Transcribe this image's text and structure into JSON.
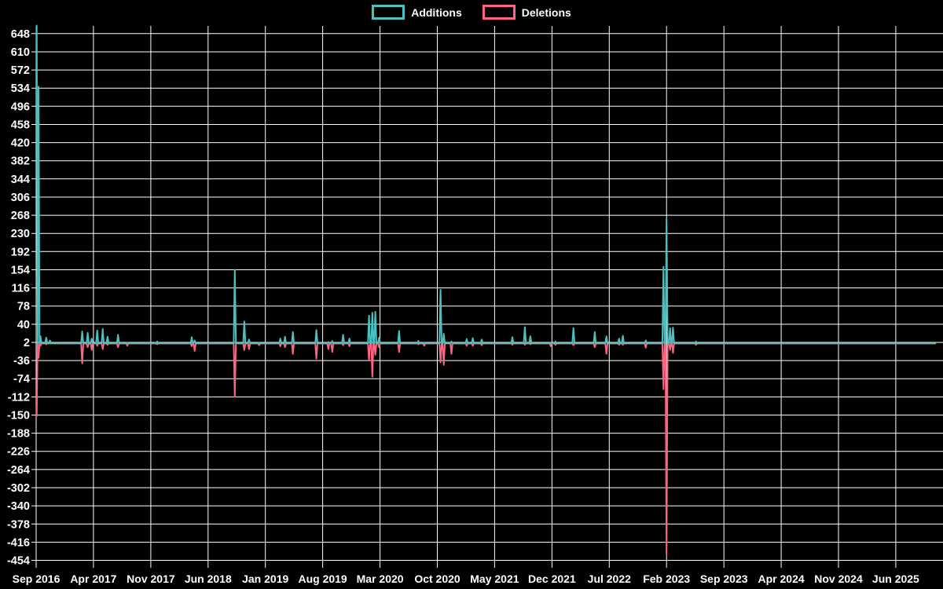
{
  "legend": {
    "additions_label": "Additions",
    "deletions_label": "Deletions"
  },
  "colors": {
    "background": "#000000",
    "grid": "#ffffff",
    "text": "#ffffff",
    "additions": "#4bc0c0",
    "deletions": "#ff6384"
  },
  "chart_data": {
    "type": "line",
    "title": "",
    "xlabel": "",
    "ylabel": "",
    "grid": true,
    "legend_position": "top",
    "x_start": "2016-09-01",
    "x_end": "2025-10-26",
    "x_tick_labels": [
      "Sep 2016",
      "Apr 2017",
      "Nov 2017",
      "Jun 2018",
      "Jan 2019",
      "Aug 2019",
      "Mar 2020",
      "Oct 2020",
      "May 2021",
      "Dec 2021",
      "Jul 2022",
      "Feb 2023",
      "Sep 2023",
      "Apr 2024",
      "Nov 2024",
      "Jun 2025"
    ],
    "x_tick_interval_months": 7,
    "y_ticks": [
      648,
      610,
      572,
      534,
      496,
      458,
      420,
      382,
      344,
      306,
      268,
      230,
      192,
      154,
      116,
      78,
      40,
      2,
      -36,
      -74,
      -112,
      -150,
      -188,
      -226,
      -264,
      -302,
      -340,
      -378,
      -416,
      -454
    ],
    "ylim": [
      -466,
      666
    ],
    "baseline": 0,
    "series": [
      {
        "name": "Additions",
        "color": "#4bc0c0",
        "value_key": "additions"
      },
      {
        "name": "Deletions",
        "color": "#ff6384",
        "value_key": "deletions"
      }
    ],
    "note": "Weekly commit additions/deletions; all dates not listed below are 0 for both series.",
    "points": [
      {
        "date": "2016-09-03",
        "additions": 665,
        "deletions": -152
      },
      {
        "date": "2016-09-10",
        "additions": 537,
        "deletions": -30
      },
      {
        "date": "2016-09-17",
        "additions": 15,
        "deletions": -5
      },
      {
        "date": "2016-10-08",
        "additions": 12,
        "deletions": -2
      },
      {
        "date": "2016-10-22",
        "additions": 6,
        "deletions": 0
      },
      {
        "date": "2017-02-20",
        "additions": 25,
        "deletions": -42
      },
      {
        "date": "2017-03-10",
        "additions": 22,
        "deletions": -8
      },
      {
        "date": "2017-03-25",
        "additions": 10,
        "deletions": -14
      },
      {
        "date": "2017-04-15",
        "additions": 27,
        "deletions": -5
      },
      {
        "date": "2017-05-05",
        "additions": 30,
        "deletions": -12
      },
      {
        "date": "2017-05-23",
        "additions": 14,
        "deletions": -3
      },
      {
        "date": "2017-07-01",
        "additions": 18,
        "deletions": -8
      },
      {
        "date": "2017-08-05",
        "additions": 2,
        "deletions": -5
      },
      {
        "date": "2017-11-25",
        "additions": 4,
        "deletions": -2
      },
      {
        "date": "2018-04-01",
        "additions": 13,
        "deletions": -6
      },
      {
        "date": "2018-04-12",
        "additions": 6,
        "deletions": -16
      },
      {
        "date": "2018-09-09",
        "additions": 154,
        "deletions": -112
      },
      {
        "date": "2018-10-14",
        "additions": 46,
        "deletions": -14
      },
      {
        "date": "2018-11-01",
        "additions": 8,
        "deletions": -12
      },
      {
        "date": "2018-12-08",
        "additions": 2,
        "deletions": -4
      },
      {
        "date": "2019-02-26",
        "additions": 10,
        "deletions": -6
      },
      {
        "date": "2019-03-13",
        "additions": 14,
        "deletions": -8
      },
      {
        "date": "2019-04-12",
        "additions": 24,
        "deletions": -22
      },
      {
        "date": "2019-07-08",
        "additions": 28,
        "deletions": -32
      },
      {
        "date": "2019-08-22",
        "additions": 3,
        "deletions": -12
      },
      {
        "date": "2019-09-06",
        "additions": 5,
        "deletions": -18
      },
      {
        "date": "2019-10-16",
        "additions": 18,
        "deletions": -4
      },
      {
        "date": "2019-11-09",
        "additions": 10,
        "deletions": -6
      },
      {
        "date": "2020-01-21",
        "additions": 58,
        "deletions": -36
      },
      {
        "date": "2020-02-03",
        "additions": 64,
        "deletions": -70
      },
      {
        "date": "2020-02-14",
        "additions": 66,
        "deletions": -24
      },
      {
        "date": "2020-02-28",
        "additions": 12,
        "deletions": -8
      },
      {
        "date": "2020-05-11",
        "additions": 26,
        "deletions": -18
      },
      {
        "date": "2020-07-22",
        "additions": 5,
        "deletions": -2
      },
      {
        "date": "2020-08-13",
        "additions": 2,
        "deletions": -5
      },
      {
        "date": "2020-10-13",
        "additions": 112,
        "deletions": -40
      },
      {
        "date": "2020-10-25",
        "additions": 20,
        "deletions": -45
      },
      {
        "date": "2020-11-23",
        "additions": 4,
        "deletions": -22
      },
      {
        "date": "2021-01-19",
        "additions": 9,
        "deletions": -5
      },
      {
        "date": "2021-02-11",
        "additions": 11,
        "deletions": -5
      },
      {
        "date": "2021-03-14",
        "additions": 8,
        "deletions": -4
      },
      {
        "date": "2021-07-06",
        "additions": 13,
        "deletions": -3
      },
      {
        "date": "2021-08-22",
        "additions": 34,
        "deletions": -3
      },
      {
        "date": "2021-09-12",
        "additions": 15,
        "deletions": -2
      },
      {
        "date": "2021-11-27",
        "additions": 2,
        "deletions": -6
      },
      {
        "date": "2021-12-14",
        "additions": 4,
        "deletions": -3
      },
      {
        "date": "2022-02-20",
        "additions": 32,
        "deletions": -4
      },
      {
        "date": "2022-05-08",
        "additions": 24,
        "deletions": -8
      },
      {
        "date": "2022-06-21",
        "additions": 15,
        "deletions": -22
      },
      {
        "date": "2022-08-07",
        "additions": 10,
        "deletions": -3
      },
      {
        "date": "2022-08-21",
        "additions": 16,
        "deletions": -3
      },
      {
        "date": "2022-11-15",
        "additions": 6,
        "deletions": -9
      },
      {
        "date": "2023-01-20",
        "additions": 160,
        "deletions": -96
      },
      {
        "date": "2023-02-01",
        "additions": 260,
        "deletions": -440
      },
      {
        "date": "2023-02-14",
        "additions": 32,
        "deletions": -14
      },
      {
        "date": "2023-02-25",
        "additions": 33,
        "deletions": -20
      },
      {
        "date": "2023-05-19",
        "additions": 4,
        "deletions": -3
      }
    ]
  }
}
